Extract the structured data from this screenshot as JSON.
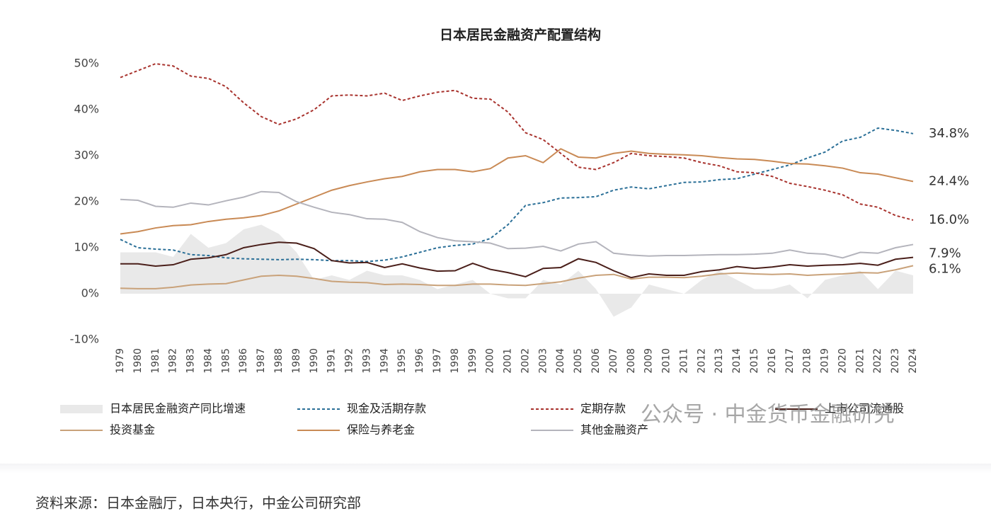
{
  "chart_data": {
    "type": "line",
    "title": "日本居民金融资产配置结构",
    "categories": [
      "1979",
      "1980",
      "1981",
      "1982",
      "1983",
      "1984",
      "1985",
      "1986",
      "1987",
      "1988",
      "1989",
      "1990",
      "1991",
      "1992",
      "1993",
      "1994",
      "1995",
      "1996",
      "1997",
      "1998",
      "1999",
      "2000",
      "2001",
      "2002",
      "2003",
      "2004",
      "2005",
      "2006",
      "2007",
      "2008",
      "2009",
      "2010",
      "2011",
      "2012",
      "2013",
      "2014",
      "2015",
      "2016",
      "2017",
      "2018",
      "2019",
      "2020",
      "2021",
      "2022",
      "2023",
      "2024"
    ],
    "ylim": [
      -10,
      50
    ],
    "yticks": [
      {
        "value": -10,
        "label": "-10%"
      },
      {
        "value": 0,
        "label": "0%"
      },
      {
        "value": 10,
        "label": "10%"
      },
      {
        "value": 20,
        "label": "20%"
      },
      {
        "value": 30,
        "label": "30%"
      },
      {
        "value": 40,
        "label": "40%"
      },
      {
        "value": 50,
        "label": "50%"
      }
    ],
    "grid": false,
    "series": [
      {
        "name": "日本居民金融资产同比增速",
        "color": "#e9e9e9",
        "style": "area",
        "values": [
          9,
          9,
          9,
          8,
          13,
          10,
          11,
          14,
          15,
          13,
          9,
          3,
          4,
          3,
          5,
          4,
          4,
          3,
          1,
          2,
          3,
          0,
          -1,
          -1,
          3,
          2,
          5,
          1,
          -5,
          -3,
          2,
          1,
          0,
          3,
          5,
          3,
          1,
          1,
          2,
          -1,
          3,
          4,
          5,
          1,
          5,
          4
        ]
      },
      {
        "name": "现金及活期存款",
        "color": "#2a6f97",
        "style": "dashed",
        "values": [
          11.8,
          10,
          9.7,
          9.5,
          8.5,
          8.3,
          7.8,
          7.6,
          7.5,
          7.4,
          7.5,
          7.4,
          7.2,
          7.2,
          7.0,
          7.3,
          8.0,
          9.0,
          10,
          10.5,
          10.8,
          12.0,
          15,
          19.2,
          19.8,
          20.8,
          20.9,
          21.1,
          22.5,
          23.2,
          22.8,
          23.5,
          24.2,
          24.3,
          24.8,
          25,
          26,
          27,
          28,
          29.5,
          30.8,
          33.2,
          34,
          36,
          35.5,
          34.8
        ],
        "value_labels": [
          null,
          null,
          null,
          null,
          null,
          null,
          null,
          null,
          null,
          null,
          null,
          null,
          null,
          null,
          null,
          null,
          null,
          null,
          null,
          null,
          null,
          null,
          null,
          null,
          null,
          null,
          null,
          null,
          null,
          null,
          null,
          null,
          null,
          null,
          null,
          null,
          null,
          null,
          null,
          null,
          null,
          null,
          null,
          null,
          null,
          "34.8%"
        ]
      },
      {
        "name": "定期存款",
        "color": "#a8322d",
        "style": "dashed",
        "values": [
          47,
          48.5,
          50,
          49.5,
          47.3,
          46.8,
          45,
          41.5,
          38.5,
          36.8,
          38,
          40,
          43,
          43.2,
          43,
          43.6,
          42,
          43,
          43.8,
          44.2,
          42.5,
          42.3,
          39.5,
          35,
          33.5,
          30.5,
          27.5,
          27,
          28.5,
          30.5,
          30,
          29.8,
          29.5,
          28.5,
          27.8,
          26.5,
          26.3,
          25.5,
          24,
          23.3,
          22.5,
          21.5,
          19.5,
          18.8,
          17,
          16.0
        ],
        "value_labels": [
          null,
          null,
          null,
          null,
          null,
          null,
          null,
          null,
          null,
          null,
          null,
          null,
          null,
          null,
          null,
          null,
          null,
          null,
          null,
          null,
          null,
          null,
          null,
          null,
          null,
          null,
          null,
          null,
          null,
          null,
          null,
          null,
          null,
          null,
          null,
          null,
          null,
          null,
          null,
          null,
          null,
          null,
          null,
          null,
          null,
          "16.0%"
        ]
      },
      {
        "name": "上市公司流通股",
        "color": "#4a1f1a",
        "style": "solid",
        "values": [
          6.5,
          6.5,
          6.0,
          6.3,
          7.5,
          7.8,
          8.5,
          10,
          10.7,
          11.2,
          11,
          9.8,
          7.2,
          6.7,
          6.8,
          5.7,
          6.5,
          5.6,
          4.9,
          5.0,
          6.6,
          5.3,
          4.6,
          3.7,
          5.5,
          5.7,
          7.6,
          6.8,
          5.0,
          3.5,
          4.3,
          4.0,
          4.0,
          4.8,
          5.2,
          5.9,
          5.5,
          5.8,
          6.3,
          6.0,
          6.2,
          6.3,
          6.6,
          6.2,
          7.5,
          7.9
        ],
        "value_labels": [
          null,
          null,
          null,
          null,
          null,
          null,
          null,
          null,
          null,
          null,
          null,
          null,
          null,
          null,
          null,
          null,
          null,
          null,
          null,
          null,
          null,
          null,
          null,
          null,
          null,
          null,
          null,
          null,
          null,
          null,
          null,
          null,
          null,
          null,
          null,
          null,
          null,
          null,
          null,
          null,
          null,
          null,
          null,
          null,
          null,
          "7.9%"
        ]
      },
      {
        "name": "投资基金",
        "color": "#c9a27a",
        "style": "solid",
        "values": [
          1.2,
          1.1,
          1.1,
          1.4,
          1.9,
          2.1,
          2.2,
          3.0,
          3.8,
          4.0,
          3.8,
          3.3,
          2.7,
          2.5,
          2.4,
          2.0,
          2.1,
          2.0,
          1.8,
          1.8,
          2.1,
          2.1,
          1.9,
          1.8,
          2.2,
          2.6,
          3.4,
          4.0,
          4.2,
          3.2,
          3.6,
          3.6,
          3.5,
          3.8,
          4.3,
          4.5,
          4.3,
          4.2,
          4.3,
          4.0,
          4.2,
          4.3,
          4.6,
          4.5,
          5.2,
          6.1
        ],
        "value_labels": [
          null,
          null,
          null,
          null,
          null,
          null,
          null,
          null,
          null,
          null,
          null,
          null,
          null,
          null,
          null,
          null,
          null,
          null,
          null,
          null,
          null,
          null,
          null,
          null,
          null,
          null,
          null,
          null,
          null,
          null,
          null,
          null,
          null,
          null,
          null,
          null,
          null,
          null,
          null,
          null,
          null,
          null,
          null,
          null,
          null,
          "6.1%"
        ]
      },
      {
        "name": "保险与养老金",
        "color": "#c98a55",
        "style": "solid",
        "values": [
          13,
          13.5,
          14.3,
          14.8,
          15,
          15.7,
          16.2,
          16.5,
          17,
          18,
          19.5,
          21,
          22.5,
          23.5,
          24.3,
          25,
          25.5,
          26.5,
          27,
          27,
          26.5,
          27.2,
          29.5,
          30,
          28.5,
          31.5,
          29.7,
          29.5,
          30.5,
          31,
          30.5,
          30.3,
          30.2,
          30,
          29.6,
          29.3,
          29.2,
          28.8,
          28.3,
          28.2,
          27.8,
          27.3,
          26.3,
          26,
          25.2,
          24.4
        ],
        "value_labels": [
          null,
          null,
          null,
          null,
          null,
          null,
          null,
          null,
          null,
          null,
          null,
          null,
          null,
          null,
          null,
          null,
          null,
          null,
          null,
          null,
          null,
          null,
          null,
          null,
          null,
          null,
          null,
          null,
          null,
          null,
          null,
          null,
          null,
          null,
          null,
          null,
          null,
          null,
          null,
          null,
          null,
          null,
          null,
          null,
          null,
          "24.4%"
        ]
      },
      {
        "name": "其他金融资产",
        "color": "#b4b4bc",
        "style": "solid",
        "values": [
          20.5,
          20.3,
          19,
          18.8,
          19.7,
          19.3,
          20.2,
          21,
          22.2,
          22,
          20,
          18.8,
          17.7,
          17.2,
          16.3,
          16.2,
          15.5,
          13.5,
          12.2,
          11.5,
          11.3,
          11.0,
          9.8,
          9.9,
          10.3,
          9.3,
          10.8,
          11.3,
          8.8,
          8.4,
          8.2,
          8.3,
          8.3,
          8.4,
          8.5,
          8.5,
          8.6,
          8.8,
          9.5,
          8.8,
          8.6,
          7.8,
          9.0,
          8.8,
          10.0,
          10.7
        ]
      }
    ],
    "watermark": "公众号 · 中金货币金融研究",
    "source": "资料来源：日本金融厅，日本央行，中金公司研究部"
  }
}
